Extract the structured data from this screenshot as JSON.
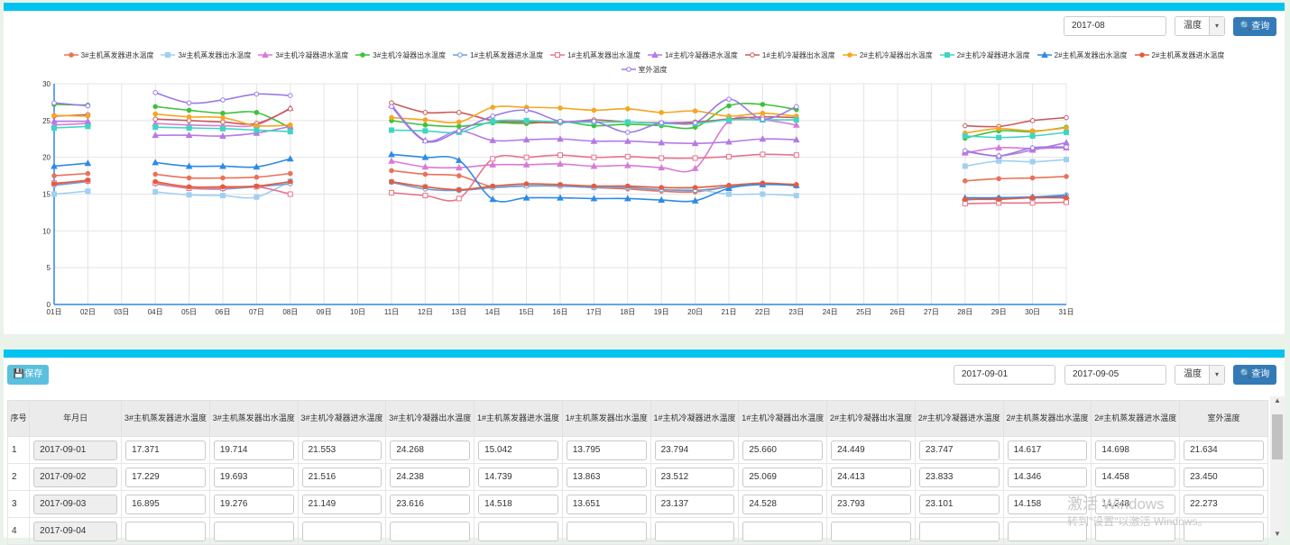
{
  "top_panel": {
    "month_value": "2017-08",
    "type_select": "温度",
    "query_label": "查询"
  },
  "chart_data": {
    "type": "line",
    "x": [
      "01日",
      "02日",
      "03日",
      "04日",
      "05日",
      "06日",
      "07日",
      "08日",
      "09日",
      "10日",
      "11日",
      "12日",
      "13日",
      "14日",
      "15日",
      "16日",
      "17日",
      "18日",
      "19日",
      "20日",
      "21日",
      "22日",
      "23日",
      "24日",
      "25日",
      "26日",
      "27日",
      "28日",
      "29日",
      "30日",
      "31日"
    ],
    "yticks": [
      0,
      5,
      10,
      15,
      20,
      25,
      30
    ],
    "ylim": [
      0,
      30
    ],
    "grid": true,
    "legend_position": "top",
    "series": [
      {
        "name": "3#主机蒸发器进水温度",
        "color": "#e8735a",
        "marker": "circle",
        "values": [
          17.5,
          17.8,
          null,
          17.7,
          17.2,
          17.2,
          17.3,
          17.8,
          null,
          null,
          18.2,
          17.7,
          17.5,
          16.0,
          16.2,
          16.1,
          15.9,
          15.7,
          15.4,
          15.3,
          16.0,
          16.4,
          16.2,
          null,
          null,
          null,
          null,
          16.8,
          17.1,
          17.2,
          17.4
        ]
      },
      {
        "name": "3#主机蒸发器出水温度",
        "color": "#9fd0f0",
        "marker": "rect",
        "values": [
          15.0,
          15.4,
          null,
          15.3,
          14.9,
          14.8,
          14.6,
          16.8,
          null,
          null,
          16.7,
          16.0,
          15.6,
          16.0,
          16.2,
          16.2,
          15.9,
          15.9,
          15.6,
          15.6,
          15.0,
          15.0,
          14.8,
          null,
          null,
          null,
          null,
          18.8,
          19.5,
          19.4,
          19.7
        ]
      },
      {
        "name": "3#主机冷凝器进水温度",
        "color": "#d97ad6",
        "marker": "triangle",
        "values": [
          24.4,
          24.6,
          null,
          24.6,
          24.4,
          24.3,
          24.4,
          26.7,
          null,
          null,
          19.5,
          18.7,
          18.6,
          19.0,
          19.0,
          19.1,
          18.8,
          18.9,
          18.6,
          18.5,
          24.9,
          25.1,
          24.4,
          null,
          null,
          null,
          null,
          20.6,
          21.3,
          21.2,
          21.3
        ]
      },
      {
        "name": "3#主机冷凝器出水温度",
        "color": "#3cc23c",
        "marker": "circle",
        "values": [
          27.2,
          27.1,
          null,
          26.9,
          26.4,
          26.0,
          26.1,
          24.0,
          null,
          null,
          25.0,
          24.4,
          24.2,
          24.7,
          24.6,
          24.9,
          24.3,
          24.5,
          24.3,
          24.1,
          27.0,
          27.2,
          26.5,
          null,
          null,
          null,
          null,
          22.6,
          23.6,
          23.5,
          24.1
        ]
      },
      {
        "name": "1#主机蒸发器进水温度",
        "color": "#6a9ad6",
        "marker": "emptyCircle",
        "values": [
          16.2,
          16.7,
          null,
          16.4,
          15.8,
          15.7,
          16.0,
          16.4,
          null,
          null,
          16.6,
          15.7,
          15.5,
          15.9,
          16.1,
          16.1,
          15.9,
          15.9,
          15.6,
          15.5,
          16.0,
          16.5,
          16.1,
          null,
          null,
          null,
          null,
          14.2,
          14.5,
          14.6,
          14.9
        ]
      },
      {
        "name": "1#主机蒸发器出水温度",
        "color": "#e8738c",
        "marker": "emptyRect",
        "values": [
          16.5,
          16.8,
          null,
          16.5,
          15.8,
          15.8,
          16.0,
          15.0,
          null,
          null,
          15.2,
          14.8,
          14.4,
          19.8,
          20.0,
          20.3,
          20.0,
          20.1,
          19.9,
          19.9,
          20.1,
          20.4,
          20.3,
          null,
          null,
          null,
          null,
          13.7,
          13.8,
          13.8,
          13.9
        ]
      },
      {
        "name": "1#主机冷凝器进水温度",
        "color": "#b47ae6",
        "marker": "triangle",
        "values": [
          24.9,
          24.9,
          null,
          23.0,
          23.0,
          22.9,
          23.3,
          24.2,
          null,
          null,
          27.1,
          22.3,
          23.6,
          22.3,
          22.4,
          22.5,
          22.2,
          22.2,
          22.0,
          21.9,
          22.1,
          22.5,
          22.4,
          null,
          null,
          null,
          null,
          20.8,
          20.2,
          21.0,
          22.0
        ]
      },
      {
        "name": "1#主机冷凝器出水温度",
        "color": "#c95a5a",
        "marker": "emptyCircle",
        "values": [
          25.6,
          25.8,
          null,
          25.2,
          25.0,
          24.8,
          24.6,
          26.6,
          null,
          null,
          27.4,
          26.1,
          26.1,
          25.0,
          24.8,
          24.7,
          25.1,
          24.8,
          24.7,
          24.8,
          25.2,
          25.5,
          25.4,
          null,
          null,
          null,
          null,
          24.3,
          24.2,
          25.0,
          25.4
        ]
      },
      {
        "name": "2#主机冷凝器出水温度",
        "color": "#f5a623",
        "marker": "circle",
        "values": [
          25.7,
          25.6,
          null,
          25.9,
          25.5,
          25.4,
          24.3,
          24.4,
          null,
          null,
          25.4,
          25.1,
          24.8,
          26.8,
          26.8,
          26.7,
          26.4,
          26.6,
          26.1,
          26.3,
          25.6,
          26.0,
          25.6,
          null,
          null,
          null,
          null,
          23.3,
          23.9,
          23.6,
          24.0
        ]
      },
      {
        "name": "2#主机冷凝器进水温度",
        "color": "#3ed6c3",
        "marker": "rect",
        "values": [
          24.0,
          24.2,
          null,
          24.1,
          24.0,
          23.9,
          23.7,
          23.5,
          null,
          null,
          23.7,
          23.6,
          23.4,
          24.9,
          25.0,
          24.8,
          24.8,
          24.8,
          24.6,
          24.6,
          25.1,
          25.1,
          25.1,
          null,
          null,
          null,
          null,
          22.9,
          22.7,
          22.9,
          23.4
        ]
      },
      {
        "name": "2#主机蒸发器出水温度",
        "color": "#2d8ae6",
        "marker": "triangle",
        "values": [
          18.8,
          19.2,
          null,
          19.3,
          18.8,
          18.8,
          18.7,
          19.8,
          null,
          null,
          20.4,
          20.0,
          19.6,
          14.3,
          14.5,
          14.5,
          14.4,
          14.4,
          14.2,
          14.1,
          15.8,
          16.3,
          16.2,
          null,
          null,
          null,
          null,
          14.5,
          14.5,
          14.6,
          14.7
        ]
      },
      {
        "name": "2#主机蒸发器进水温度",
        "color": "#e85a3c",
        "marker": "circle",
        "values": [
          16.4,
          16.9,
          null,
          16.7,
          16.0,
          16.0,
          16.1,
          16.7,
          null,
          null,
          16.7,
          16.0,
          15.6,
          16.1,
          16.4,
          16.3,
          16.1,
          16.1,
          15.9,
          15.9,
          16.2,
          16.5,
          16.3,
          null,
          null,
          null,
          null,
          14.3,
          14.3,
          14.5,
          14.5
        ]
      },
      {
        "name": "室外温度",
        "color": "#9a7ae6",
        "marker": "emptyCircle",
        "values": [
          27.4,
          27.0,
          null,
          28.8,
          27.4,
          27.8,
          28.6,
          28.4,
          null,
          null,
          26.9,
          22.2,
          23.6,
          25.6,
          26.4,
          24.9,
          24.9,
          23.4,
          24.7,
          24.7,
          27.9,
          25.2,
          26.9,
          null,
          null,
          null,
          null,
          20.9,
          20.2,
          21.3,
          21.4
        ]
      }
    ]
  },
  "bottom_panel": {
    "save_label": "保存",
    "start_date": "2017-09-01",
    "end_date": "2017-09-05",
    "type_select": "温度",
    "query_label": "查询",
    "columns": [
      "序号",
      "年月日",
      "3#主机蒸发器进水温度",
      "3#主机蒸发器出水温度",
      "3#主机冷凝器进水温度",
      "3#主机冷凝器出水温度",
      "1#主机蒸发器进水温度",
      "1#主机蒸发器出水温度",
      "1#主机冷凝器进水温度",
      "1#主机冷凝器出水温度",
      "2#主机冷凝器出水温度",
      "2#主机冷凝器进水温度",
      "2#主机蒸发器出水温度",
      "2#主机蒸发器进水温度",
      "室外温度"
    ],
    "rows": [
      {
        "no": "1",
        "date": "2017-09-01",
        "vals": [
          "17.371",
          "19.714",
          "21.553",
          "24.268",
          "15.042",
          "13.795",
          "23.794",
          "25.660",
          "24.449",
          "23.747",
          "14.617",
          "14.698",
          "21.634"
        ]
      },
      {
        "no": "2",
        "date": "2017-09-02",
        "vals": [
          "17.229",
          "19.693",
          "21.516",
          "24.238",
          "14.739",
          "13.863",
          "23.512",
          "25.069",
          "24.413",
          "23.833",
          "14.346",
          "14.458",
          "23.450"
        ]
      },
      {
        "no": "3",
        "date": "2017-09-03",
        "vals": [
          "16.895",
          "19.276",
          "21.149",
          "23.616",
          "14.518",
          "13.651",
          "23.137",
          "24.528",
          "23.793",
          "23.101",
          "14.158",
          "14.248",
          "22.273"
        ]
      },
      {
        "no": "4",
        "date": "2017-09-04",
        "vals": [
          "",
          "",
          "",
          "",
          "",
          "",
          "",
          "",
          "",
          "",
          "",
          "",
          ""
        ]
      }
    ]
  },
  "watermark": {
    "line1": "激活 Windows",
    "line2": "转到\"设置\"以激活 Windows。"
  }
}
